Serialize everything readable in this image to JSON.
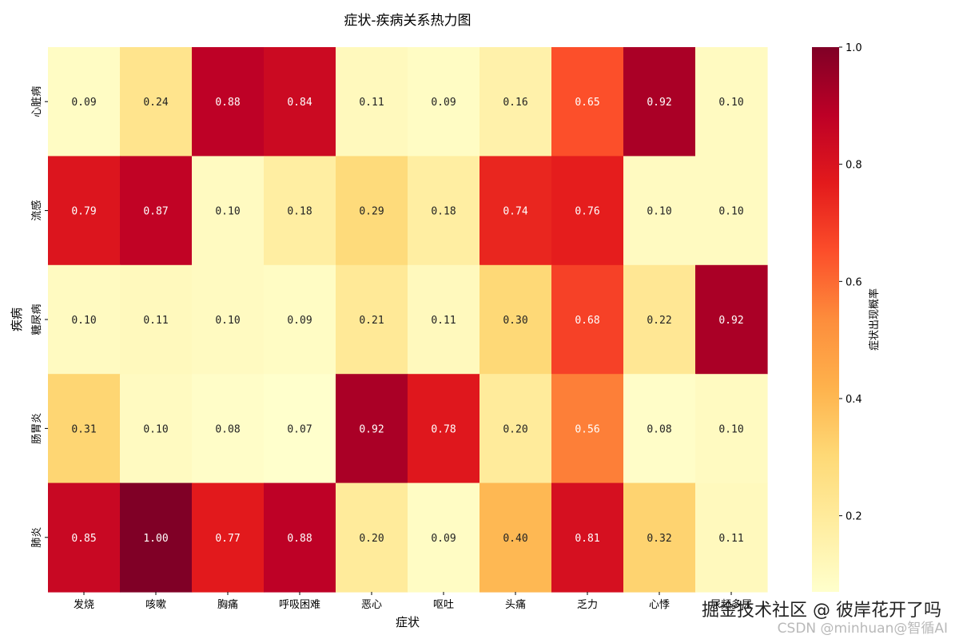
{
  "chart_data": {
    "type": "heatmap",
    "title": "症状-疾病关系热力图",
    "xlabel": "症状",
    "ylabel": "疾病",
    "x_categories": [
      "发烧",
      "咳嗽",
      "胸痛",
      "呼吸困难",
      "恶心",
      "呕吐",
      "头痛",
      "乏力",
      "心悸",
      "尿频多尿"
    ],
    "y_categories": [
      "心脏病",
      "流感",
      "糖尿病",
      "肠胃炎",
      "肺炎"
    ],
    "values": [
      [
        0.09,
        0.24,
        0.88,
        0.84,
        0.11,
        0.09,
        0.16,
        0.65,
        0.92,
        0.1
      ],
      [
        0.79,
        0.87,
        0.1,
        0.18,
        0.29,
        0.18,
        0.74,
        0.76,
        0.1,
        0.1
      ],
      [
        0.1,
        0.11,
        0.1,
        0.09,
        0.21,
        0.11,
        0.3,
        0.68,
        0.22,
        0.92
      ],
      [
        0.31,
        0.1,
        0.08,
        0.07,
        0.92,
        0.78,
        0.2,
        0.56,
        0.08,
        0.1
      ],
      [
        0.85,
        1.0,
        0.77,
        0.88,
        0.2,
        0.09,
        0.4,
        0.81,
        0.32,
        0.11
      ]
    ],
    "colorbar": {
      "label": "症状出现概率",
      "range": [
        0.07,
        1.0
      ],
      "ticks": [
        "0.2",
        "0.4",
        "0.6",
        "0.8",
        "1.0"
      ],
      "colormap": "YlOrRd"
    }
  },
  "watermark": {
    "line1": "掘金技术社区 @ 彼岸花开了吗",
    "line2": "CSDN @minhuan@智循AI"
  }
}
